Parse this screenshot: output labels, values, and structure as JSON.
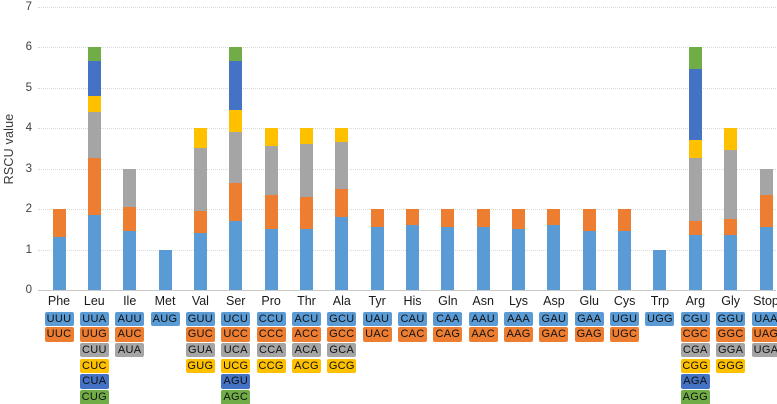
{
  "chart_data": {
    "type": "bar",
    "stacked": true,
    "title": "",
    "xlabel": "",
    "ylabel": "RSCU value",
    "ylim": [
      0,
      7
    ],
    "yticks": [
      0,
      1,
      2,
      3,
      4,
      5,
      6,
      7
    ],
    "grid": "horizontal-dotted",
    "legend": "none (codon color key shown as colored codon table under x-axis)",
    "series_colors": [
      "#5B9BD5",
      "#ED7D31",
      "#A5A5A5",
      "#FFC000",
      "#4472C4",
      "#70AD47"
    ],
    "groups": [
      {
        "amino_acid": "Phe",
        "codons": [
          {
            "codon": "UUU",
            "rscu": 1.3
          },
          {
            "codon": "UUC",
            "rscu": 0.7
          }
        ]
      },
      {
        "amino_acid": "Leu",
        "codons": [
          {
            "codon": "UUA",
            "rscu": 1.85
          },
          {
            "codon": "UUG",
            "rscu": 1.4
          },
          {
            "codon": "CUU",
            "rscu": 1.15
          },
          {
            "codon": "CUC",
            "rscu": 0.4
          },
          {
            "codon": "CUA",
            "rscu": 0.85
          },
          {
            "codon": "CUG",
            "rscu": 0.35
          }
        ]
      },
      {
        "amino_acid": "Ile",
        "codons": [
          {
            "codon": "AUU",
            "rscu": 1.45
          },
          {
            "codon": "AUC",
            "rscu": 0.6
          },
          {
            "codon": "AUA",
            "rscu": 0.95
          }
        ]
      },
      {
        "amino_acid": "Met",
        "codons": [
          {
            "codon": "AUG",
            "rscu": 1.0
          }
        ]
      },
      {
        "amino_acid": "Val",
        "codons": [
          {
            "codon": "GUU",
            "rscu": 1.4
          },
          {
            "codon": "GUC",
            "rscu": 0.55
          },
          {
            "codon": "GUA",
            "rscu": 1.55
          },
          {
            "codon": "GUG",
            "rscu": 0.5
          }
        ]
      },
      {
        "amino_acid": "Ser",
        "codons": [
          {
            "codon": "UCU",
            "rscu": 1.7
          },
          {
            "codon": "UCC",
            "rscu": 0.95
          },
          {
            "codon": "UCA",
            "rscu": 1.25
          },
          {
            "codon": "UCG",
            "rscu": 0.55
          },
          {
            "codon": "AGU",
            "rscu": 1.2
          },
          {
            "codon": "AGC",
            "rscu": 0.35
          }
        ]
      },
      {
        "amino_acid": "Pro",
        "codons": [
          {
            "codon": "CCU",
            "rscu": 1.5
          },
          {
            "codon": "CCC",
            "rscu": 0.85
          },
          {
            "codon": "CCA",
            "rscu": 1.2
          },
          {
            "codon": "CCG",
            "rscu": 0.45
          }
        ]
      },
      {
        "amino_acid": "Thr",
        "codons": [
          {
            "codon": "ACU",
            "rscu": 1.5
          },
          {
            "codon": "ACC",
            "rscu": 0.8
          },
          {
            "codon": "ACA",
            "rscu": 1.3
          },
          {
            "codon": "ACG",
            "rscu": 0.4
          }
        ]
      },
      {
        "amino_acid": "Ala",
        "codons": [
          {
            "codon": "GCU",
            "rscu": 1.8
          },
          {
            "codon": "GCC",
            "rscu": 0.7
          },
          {
            "codon": "GCA",
            "rscu": 1.15
          },
          {
            "codon": "GCG",
            "rscu": 0.35
          }
        ]
      },
      {
        "amino_acid": "Tyr",
        "codons": [
          {
            "codon": "UAU",
            "rscu": 1.55
          },
          {
            "codon": "UAC",
            "rscu": 0.45
          }
        ]
      },
      {
        "amino_acid": "His",
        "codons": [
          {
            "codon": "CAU",
            "rscu": 1.6
          },
          {
            "codon": "CAC",
            "rscu": 0.4
          }
        ]
      },
      {
        "amino_acid": "Gln",
        "codons": [
          {
            "codon": "CAA",
            "rscu": 1.55
          },
          {
            "codon": "CAG",
            "rscu": 0.45
          }
        ]
      },
      {
        "amino_acid": "Asn",
        "codons": [
          {
            "codon": "AAU",
            "rscu": 1.55
          },
          {
            "codon": "AAC",
            "rscu": 0.45
          }
        ]
      },
      {
        "amino_acid": "Lys",
        "codons": [
          {
            "codon": "AAA",
            "rscu": 1.5
          },
          {
            "codon": "AAG",
            "rscu": 0.5
          }
        ]
      },
      {
        "amino_acid": "Asp",
        "codons": [
          {
            "codon": "GAU",
            "rscu": 1.6
          },
          {
            "codon": "GAC",
            "rscu": 0.4
          }
        ]
      },
      {
        "amino_acid": "Glu",
        "codons": [
          {
            "codon": "GAA",
            "rscu": 1.45
          },
          {
            "codon": "GAG",
            "rscu": 0.55
          }
        ]
      },
      {
        "amino_acid": "Cys",
        "codons": [
          {
            "codon": "UGU",
            "rscu": 1.45
          },
          {
            "codon": "UGC",
            "rscu": 0.55
          }
        ]
      },
      {
        "amino_acid": "Trp",
        "codons": [
          {
            "codon": "UGG",
            "rscu": 1.0
          }
        ]
      },
      {
        "amino_acid": "Arg",
        "codons": [
          {
            "codon": "CGU",
            "rscu": 1.35
          },
          {
            "codon": "CGC",
            "rscu": 0.35
          },
          {
            "codon": "CGA",
            "rscu": 1.55
          },
          {
            "codon": "CGG",
            "rscu": 0.45
          },
          {
            "codon": "AGA",
            "rscu": 1.75
          },
          {
            "codon": "AGG",
            "rscu": 0.55
          }
        ]
      },
      {
        "amino_acid": "Gly",
        "codons": [
          {
            "codon": "GGU",
            "rscu": 1.35
          },
          {
            "codon": "GGC",
            "rscu": 0.4
          },
          {
            "codon": "GGA",
            "rscu": 1.7
          },
          {
            "codon": "GGG",
            "rscu": 0.55
          }
        ]
      },
      {
        "amino_acid": "Stop",
        "codons": [
          {
            "codon": "UAA",
            "rscu": 1.55
          },
          {
            "codon": "UAG",
            "rscu": 0.8
          },
          {
            "codon": "UGA",
            "rscu": 0.65
          }
        ]
      }
    ]
  }
}
